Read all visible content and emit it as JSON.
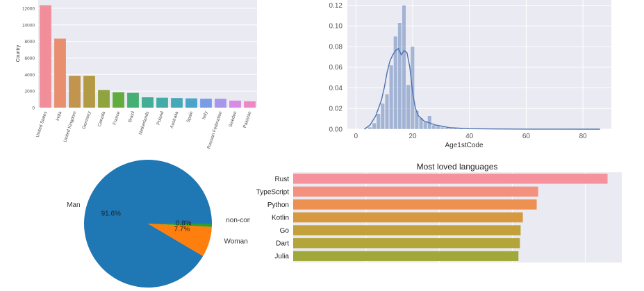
{
  "chart_data": [
    {
      "type": "bar",
      "title": "",
      "xlabel": "",
      "ylabel": "Country",
      "categories": [
        "United States",
        "India",
        "United Kingdom",
        "Germany",
        "Canada",
        "France",
        "Brazil",
        "Netherlands",
        "Poland",
        "Australia",
        "Spain",
        "Italy",
        "Russian Federation",
        "Sweden",
        "Pakistan"
      ],
      "values": [
        12370,
        8340,
        3850,
        3850,
        2120,
        1850,
        1790,
        1250,
        1200,
        1160,
        1120,
        1080,
        1070,
        850,
        770
      ],
      "ylim": [
        0,
        13000
      ],
      "yticks": [
        0,
        2000,
        4000,
        6000,
        8000,
        10000,
        12000
      ],
      "ytick_labels": [
        "0",
        "2000",
        "4000",
        "6000",
        "8000",
        "10000",
        "12000"
      ],
      "colors": [
        "#f28e9a",
        "#e78f6f",
        "#c3944f",
        "#b39a44",
        "#8fa43e",
        "#62ab3f",
        "#46b074",
        "#43ae95",
        "#43aca8",
        "#46a9b8",
        "#4ba5c9",
        "#7a9ce6",
        "#a796eb",
        "#d88be4",
        "#ef86c6"
      ],
      "grid": true
    },
    {
      "type": "line",
      "subtype": "histogram-with-kde",
      "title": "",
      "xlabel": "Age1stCode",
      "ylabel": "",
      "xlim": [
        -3,
        90
      ],
      "ylim": [
        0,
        0.125
      ],
      "xticks": [
        0,
        20,
        40,
        60,
        80
      ],
      "xtick_labels": [
        "0",
        "20",
        "40",
        "60",
        "80"
      ],
      "yticks": [
        0,
        0.02,
        0.04,
        0.06,
        0.08,
        0.1,
        0.12
      ],
      "ytick_labels": [
        "0.00",
        "0.02",
        "0.04",
        "0.06",
        "0.08",
        "0.10",
        "0.12"
      ],
      "bin_width": 1.5,
      "bins": [
        {
          "x": 5.0,
          "y": 0.002
        },
        {
          "x": 6.5,
          "y": 0.006
        },
        {
          "x": 8.0,
          "y": 0.015
        },
        {
          "x": 9.5,
          "y": 0.025
        },
        {
          "x": 11.0,
          "y": 0.034
        },
        {
          "x": 12.5,
          "y": 0.062
        },
        {
          "x": 14.0,
          "y": 0.09
        },
        {
          "x": 15.5,
          "y": 0.103
        },
        {
          "x": 17.0,
          "y": 0.12
        },
        {
          "x": 18.5,
          "y": 0.043
        },
        {
          "x": 20.0,
          "y": 0.08
        },
        {
          "x": 21.5,
          "y": 0.018
        },
        {
          "x": 23.0,
          "y": 0.011
        },
        {
          "x": 24.5,
          "y": 0.007
        },
        {
          "x": 26.0,
          "y": 0.013
        },
        {
          "x": 27.5,
          "y": 0.004
        },
        {
          "x": 29.0,
          "y": 0.003
        },
        {
          "x": 30.5,
          "y": 0.002
        },
        {
          "x": 32.0,
          "y": 0.0015
        },
        {
          "x": 33.5,
          "y": 0.001
        },
        {
          "x": 35.0,
          "y": 0.001
        },
        {
          "x": 37.0,
          "y": 0.0007
        },
        {
          "x": 40.0,
          "y": 0.0004
        },
        {
          "x": 45.0,
          "y": 0.0002
        }
      ],
      "kde": [
        [
          3,
          0.0
        ],
        [
          5,
          0.004
        ],
        [
          7,
          0.013
        ],
        [
          9,
          0.028
        ],
        [
          10,
          0.04
        ],
        [
          11,
          0.055
        ],
        [
          12,
          0.066
        ],
        [
          13,
          0.072
        ],
        [
          14,
          0.076
        ],
        [
          15,
          0.078
        ],
        [
          16,
          0.072
        ],
        [
          17,
          0.076
        ],
        [
          18,
          0.074
        ],
        [
          19,
          0.06
        ],
        [
          20,
          0.035
        ],
        [
          21,
          0.02
        ],
        [
          22,
          0.013
        ],
        [
          24,
          0.008
        ],
        [
          26,
          0.006
        ],
        [
          28,
          0.004
        ],
        [
          30,
          0.003
        ],
        [
          33,
          0.0015
        ],
        [
          36,
          0.001
        ],
        [
          40,
          0.0005
        ],
        [
          50,
          0.0002
        ],
        [
          60,
          0.0001
        ],
        [
          70,
          5e-05
        ],
        [
          86,
          0.0
        ]
      ],
      "color": "#4c72b0",
      "grid": true
    },
    {
      "type": "pie",
      "title": "",
      "slices": [
        {
          "label": "Man",
          "pct_label": "91.6%",
          "value": 91.6,
          "color": "#1f77b4"
        },
        {
          "label": "Woman",
          "pct_label": "7.7%",
          "value": 7.7,
          "color": "#ff7f0e"
        },
        {
          "label": "non-conforming",
          "pct_label": "0.8%",
          "value": 0.8,
          "color": "#2ca02c"
        }
      ]
    },
    {
      "type": "bar",
      "orientation": "horizontal",
      "title": "Most loved languages",
      "xlabel": "",
      "ylabel": "",
      "categories": [
        "Rust",
        "TypeScript",
        "Python",
        "Kotlin",
        "Go",
        "Dart",
        "Julia"
      ],
      "values": [
        86.1,
        67.1,
        66.7,
        62.9,
        62.3,
        62.1,
        61.7
      ],
      "xlim": [
        0,
        90
      ],
      "colors": [
        "#f5929b",
        "#f3907e",
        "#ed9153",
        "#d7993f",
        "#c2a13a",
        "#b4a53a",
        "#a1a83a"
      ],
      "grid": true
    }
  ]
}
